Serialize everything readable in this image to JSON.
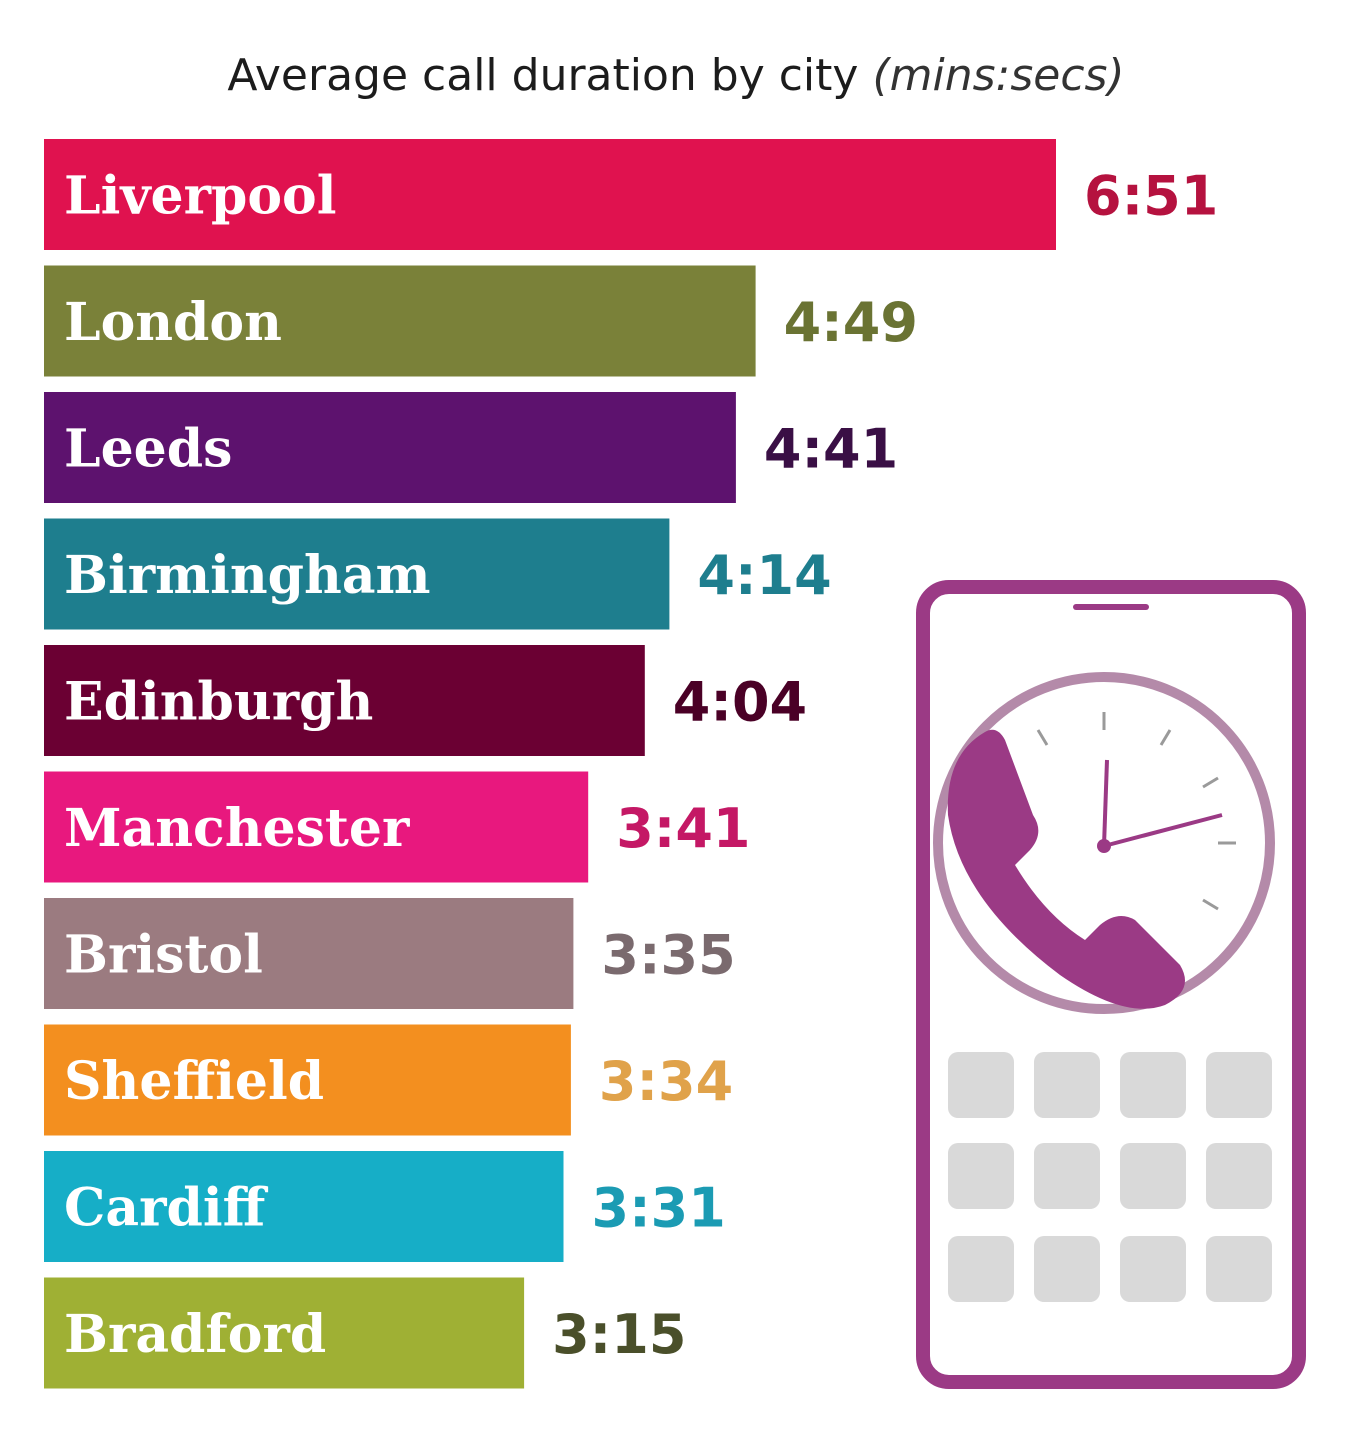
{
  "chart_data": {
    "type": "bar",
    "orientation": "horizontal",
    "title": "Average call duration by city",
    "title_unit": "(mins:secs)",
    "categories": [
      "Liverpool",
      "London",
      "Leeds",
      "Birmingham",
      "Edinburgh",
      "Manchester",
      "Bristol",
      "Sheffield",
      "Cardiff",
      "Bradford"
    ],
    "values": [
      6.85,
      4.8167,
      4.6833,
      4.2333,
      4.0667,
      3.6833,
      3.5833,
      3.5667,
      3.5167,
      3.25
    ],
    "value_labels": [
      "6:51",
      "4:49",
      "4:41",
      "4:14",
      "4:04",
      "3:41",
      "3:35",
      "3:34",
      "3:31",
      "3:15"
    ],
    "colors": [
      "#e0124f",
      "#7a8139",
      "#5d126e",
      "#1e7e8e",
      "#6b0033",
      "#e8187e",
      "#9b7b80",
      "#f38f1f",
      "#16aec7",
      "#9fb034"
    ],
    "value_label_colors": [
      "#b5123f",
      "#6a7333",
      "#3a0f45",
      "#1e7e8e",
      "#4a0026",
      "#c41865",
      "#7a6a6e",
      "#e0a24a",
      "#1b9bb3",
      "#4a4f2a"
    ],
    "xlim": [
      0,
      6.85
    ],
    "grid": false,
    "legend": "none"
  },
  "illustration": {
    "icon": "smartphone-clock-call-icon",
    "frame_color": "#9b3a85",
    "keypad_color": "#d9d9d9"
  }
}
